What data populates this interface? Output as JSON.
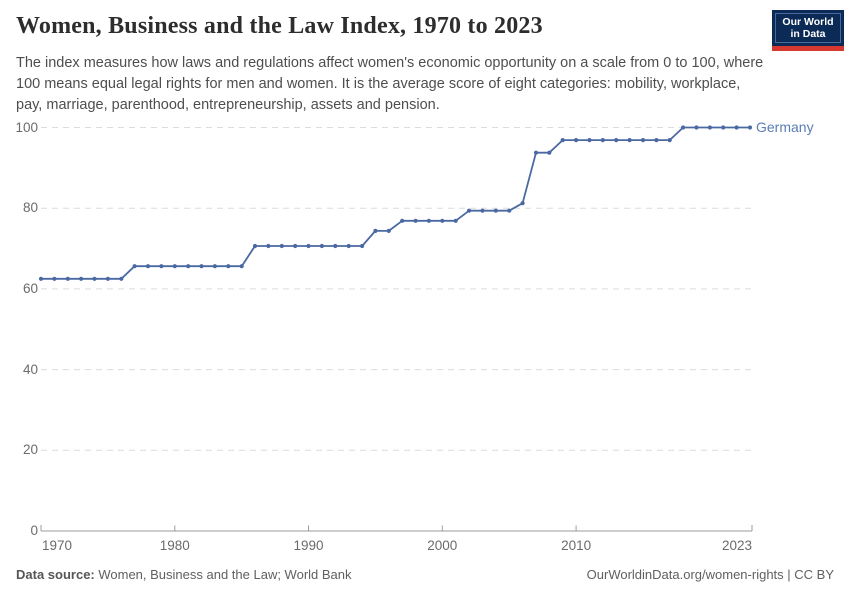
{
  "header": {
    "title": "Women, Business and the Law Index, 1970 to 2023",
    "subtitle": "The index measures how laws and regulations affect women's economic opportunity on a scale from 0 to 100, where 100 means equal legal rights for men and women. It is the average score of eight categories: mobility, workplace, pay, marriage, parenthood, entrepreneurship, assets and pension.",
    "logo": {
      "line1": "Our World",
      "line2": "in Data",
      "bg": "#0b2a56",
      "accent": "#d6382f"
    }
  },
  "chart_data": {
    "type": "line",
    "title": "Women, Business and the Law Index, 1970 to 2023",
    "xlabel": "",
    "ylabel": "",
    "xlim": [
      1970,
      2023
    ],
    "ylim": [
      0,
      100
    ],
    "grid": "horizontal-dashed",
    "legend_position": "end-of-line",
    "x_ticks": [
      1970,
      1980,
      1990,
      2000,
      2010,
      2023
    ],
    "y_ticks": [
      0,
      20,
      40,
      60,
      80,
      100
    ],
    "series": [
      {
        "name": "Germany",
        "color": "#4a69a2",
        "points": [
          [
            1970,
            62.5
          ],
          [
            1971,
            62.5
          ],
          [
            1972,
            62.5
          ],
          [
            1973,
            62.5
          ],
          [
            1974,
            62.5
          ],
          [
            1975,
            62.5
          ],
          [
            1976,
            62.5
          ],
          [
            1977,
            65.625
          ],
          [
            1978,
            65.625
          ],
          [
            1979,
            65.625
          ],
          [
            1980,
            65.625
          ],
          [
            1981,
            65.625
          ],
          [
            1982,
            65.625
          ],
          [
            1983,
            65.625
          ],
          [
            1984,
            65.625
          ],
          [
            1985,
            65.625
          ],
          [
            1986,
            70.625
          ],
          [
            1987,
            70.625
          ],
          [
            1988,
            70.625
          ],
          [
            1989,
            70.625
          ],
          [
            1990,
            70.625
          ],
          [
            1991,
            70.625
          ],
          [
            1992,
            70.625
          ],
          [
            1993,
            70.625
          ],
          [
            1994,
            70.625
          ],
          [
            1995,
            74.375
          ],
          [
            1996,
            74.375
          ],
          [
            1997,
            76.875
          ],
          [
            1998,
            76.875
          ],
          [
            1999,
            76.875
          ],
          [
            2000,
            76.875
          ],
          [
            2001,
            76.875
          ],
          [
            2002,
            79.375
          ],
          [
            2003,
            79.375
          ],
          [
            2004,
            79.375
          ],
          [
            2005,
            79.375
          ],
          [
            2006,
            81.25
          ],
          [
            2007,
            93.75
          ],
          [
            2008,
            93.75
          ],
          [
            2009,
            96.875
          ],
          [
            2010,
            96.875
          ],
          [
            2011,
            96.875
          ],
          [
            2012,
            96.875
          ],
          [
            2013,
            96.875
          ],
          [
            2014,
            96.875
          ],
          [
            2015,
            96.875
          ],
          [
            2016,
            96.875
          ],
          [
            2017,
            96.875
          ],
          [
            2018,
            100
          ],
          [
            2019,
            100
          ],
          [
            2020,
            100
          ],
          [
            2021,
            100
          ],
          [
            2022,
            100
          ],
          [
            2023,
            100
          ]
        ]
      }
    ],
    "end_label": "Germany",
    "colors": {
      "line": "#4a69a2",
      "gridline": "#dcdcdc",
      "axis": "#9b9b9b",
      "tick_label": "#6b6b6b"
    }
  },
  "footer": {
    "source_label": "Data source:",
    "source_value": " Women, Business and the Law; World Bank",
    "credit": "OurWorldinData.org/women-rights | CC BY"
  }
}
